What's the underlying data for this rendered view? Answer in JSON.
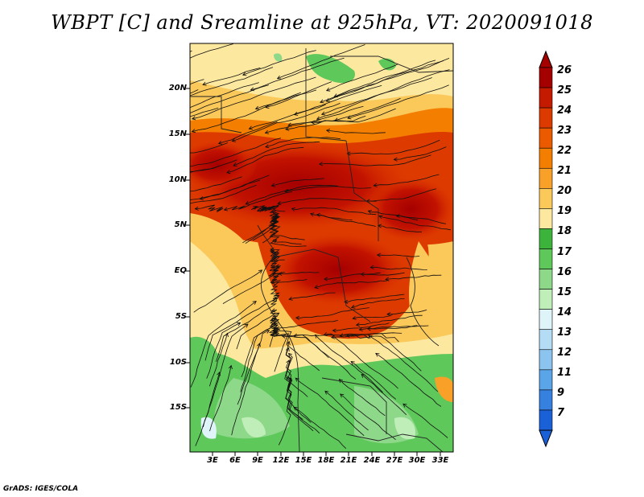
{
  "title": "WBPT [C] and Sreamline at 925hPa, VT: 2020091018",
  "credit": "GrADS: IGES/COLA",
  "map": {
    "variable": "wet-bulb potential temperature",
    "units": "C",
    "level": "925hPa",
    "valid_time": "2020091018",
    "overlay": "streamlines",
    "lat_labels": [
      "20N",
      "15N",
      "10N",
      "5N",
      "EQ",
      "5S",
      "10S",
      "15S"
    ],
    "lon_labels": [
      "3E",
      "6E",
      "9E",
      "12E",
      "15E",
      "18E",
      "21E",
      "24E",
      "27E",
      "30E",
      "33E"
    ]
  },
  "colorbar": {
    "labels": [
      "26",
      "25",
      "24",
      "23",
      "22",
      "21",
      "20",
      "19",
      "18",
      "17",
      "16",
      "15",
      "14",
      "13",
      "12",
      "11",
      "9",
      "7"
    ],
    "colors": [
      "#a50000",
      "#c41a00",
      "#dd3a00",
      "#ec5a00",
      "#f47e00",
      "#f8a028",
      "#fbc85a",
      "#fde8a0",
      "#3cb43c",
      "#5ec85a",
      "#8ed88a",
      "#bfeeb8",
      "#dff4f8",
      "#b4dcf4",
      "#8cc4f0",
      "#5aa4e8",
      "#3680e0",
      "#1a60d6"
    ]
  }
}
